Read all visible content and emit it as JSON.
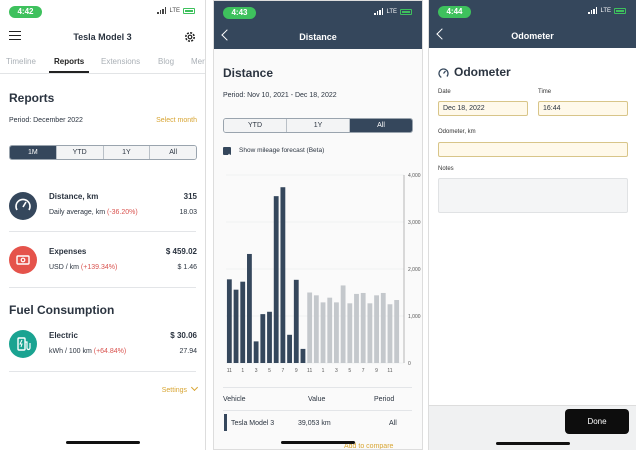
{
  "screen1": {
    "time": "4:42",
    "network": "LTE",
    "title": "Tesla Model 3",
    "tabs": [
      "Timeline",
      "Reports",
      "Extensions",
      "Blog",
      "Mer"
    ],
    "active_tab": 1,
    "section_title": "Reports",
    "period_label": "Period: December 2022",
    "select_month": "Select month",
    "segments": [
      "1M",
      "YTD",
      "1Y",
      "All"
    ],
    "active_segment": 0,
    "distance": {
      "label": "Distance, km",
      "value": "315",
      "sub_label": "Daily average, km",
      "sub_change": "(-36.20%)",
      "sub_value": "18.03"
    },
    "expenses": {
      "label": "Expenses",
      "value": "$ 459.02",
      "sub_label": "USD / km",
      "sub_change": "(+139.34%)",
      "sub_value": "$ 1.46"
    },
    "fuel_title": "Fuel Consumption",
    "electric": {
      "label": "Electric",
      "value": "$ 30.06",
      "sub_label": "kWh / 100 km",
      "sub_change": "(+64.84%)",
      "sub_value": "27.94"
    },
    "settings_label": "Settings"
  },
  "screen2": {
    "time": "4:43",
    "network": "LTE",
    "nav_title": "Distance",
    "heading": "Distance",
    "period": "Period: Nov 10, 2021 - Dec 18, 2022",
    "segments": [
      "YTD",
      "1Y",
      "All"
    ],
    "active_segment": 2,
    "forecast_label": "Show mileage forecast (Beta)",
    "table_headers": [
      "Vehicle",
      "Value",
      "Period"
    ],
    "table_row": {
      "vehicle": "Tesla Model 3",
      "value": "39,053 km",
      "period": "All"
    },
    "add_to_compare": "Add to compare"
  },
  "chart_data": {
    "type": "bar",
    "categories": [
      "11",
      "12",
      "1",
      "2",
      "3",
      "4",
      "5",
      "6",
      "7",
      "8",
      "9",
      "10",
      "11",
      "12",
      "1",
      "2",
      "3",
      "4",
      "5",
      "6",
      "7",
      "8",
      "9",
      "10",
      "11",
      "12"
    ],
    "tick_labels": [
      "11",
      "1",
      "3",
      "5",
      "7",
      "9",
      "11",
      "1",
      "3",
      "5",
      "7",
      "9",
      "11"
    ],
    "series": [
      {
        "values": [
          1780,
          1560,
          1730,
          2320,
          460,
          1040,
          1090,
          3550,
          3740,
          600,
          1770,
          300,
          null,
          null,
          null,
          null,
          null,
          null,
          null,
          null,
          null,
          null,
          null,
          null,
          null,
          null
        ]
      },
      {
        "values": [
          null,
          null,
          null,
          null,
          null,
          null,
          null,
          null,
          null,
          null,
          null,
          null,
          1500,
          1440,
          1290,
          1390,
          1290,
          1650,
          1270,
          1470,
          1490,
          1270,
          1440,
          1490,
          1250,
          1340
        ]
      }
    ],
    "colors": {
      "actual": "#35475c",
      "forecast": "#c4c8cc"
    },
    "y_ticks": [
      "4,000",
      "3,000",
      "2,000",
      "1,000",
      "0"
    ],
    "ylim": [
      0,
      4000
    ],
    "grid": true
  },
  "screen3": {
    "time": "4:44",
    "network": "LTE",
    "nav_title": "Odometer",
    "heading": "Odometer",
    "date_label": "Date",
    "date_value": "Dec 18, 2022",
    "time_label": "Time",
    "time_value": "16:44",
    "odometer_label": "Odometer, km",
    "odometer_value": "",
    "notes_label": "Notes",
    "notes_value": "",
    "done_label": "Done"
  }
}
